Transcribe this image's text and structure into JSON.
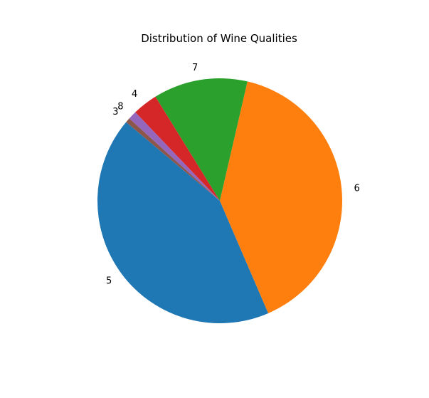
{
  "chart_data": {
    "type": "pie",
    "title": "Distribution of Wine Qualities",
    "start_angle_deg": 140,
    "direction": "counterclockwise",
    "slices": [
      {
        "label": "5",
        "value": 681,
        "color": "#1f77b4"
      },
      {
        "label": "6",
        "value": 638,
        "color": "#ff7f0e"
      },
      {
        "label": "7",
        "value": 199,
        "color": "#2ca02c"
      },
      {
        "label": "4",
        "value": 53,
        "color": "#d62728"
      },
      {
        "label": "8",
        "value": 18,
        "color": "#9467bd"
      },
      {
        "label": "3",
        "value": 10,
        "color": "#8c564b"
      }
    ]
  }
}
